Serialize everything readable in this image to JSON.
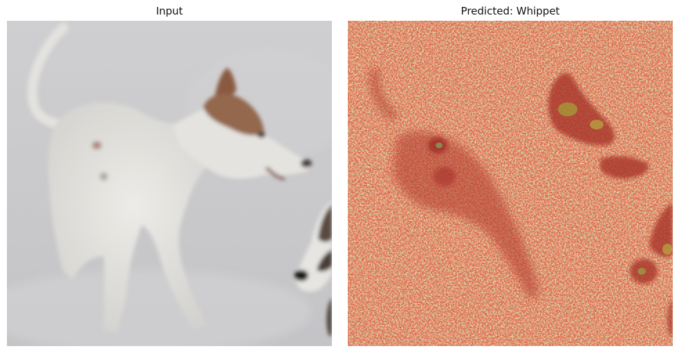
{
  "panels": {
    "input_title": "Input",
    "prediction_title": "Predicted: Whippet"
  },
  "colors": {
    "snow_background": "#c9c9cb",
    "dog_coat": "#e2e1dd",
    "ear_brown": "#8a5a40",
    "nose_dark": "#2a2622",
    "heatmap_base": "#e0624d",
    "heatmap_mid": "#e8c060",
    "heatmap_cool": "#7fe08f",
    "heatmap_cold": "#3f7fe0",
    "heatmap_hot": "#a8342c"
  },
  "images": {
    "input_icon": "whippet-in-snow-image",
    "overlay_icon": "saliency-heatmap-overlay"
  }
}
